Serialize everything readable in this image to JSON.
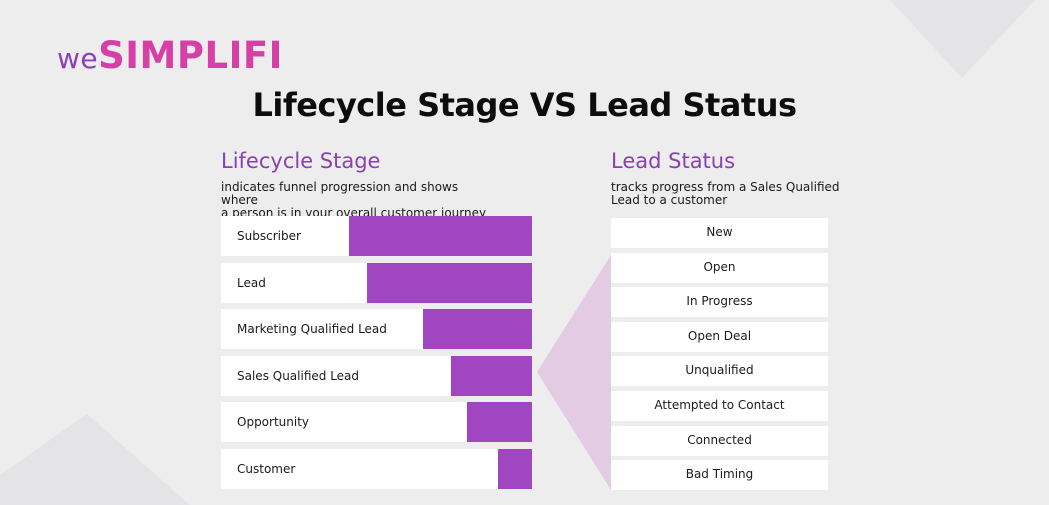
{
  "logo": {
    "prefix": "we",
    "brand": "SIMPLIFI"
  },
  "title": "Lifecycle Stage VS Lead Status",
  "lifecycle": {
    "heading": "Lifecycle Stage",
    "description_line1": "indicates funnel progression and shows where",
    "description_line2": "a person is in your overall customer journey",
    "stages": [
      {
        "label": "Subscriber",
        "level": 0.59
      },
      {
        "label": "Lead",
        "level": 0.53
      },
      {
        "label": "Marketing Qualified Lead",
        "level": 0.35
      },
      {
        "label": "Sales Qualified Lead",
        "level": 0.26
      },
      {
        "label": "Opportunity",
        "level": 0.21
      },
      {
        "label": "Customer",
        "level": 0.11
      }
    ]
  },
  "lead_status": {
    "heading": "Lead Status",
    "description_line1": "tracks progress from a Sales Qualified",
    "description_line2": "Lead to a customer",
    "statuses": [
      "New",
      "Open",
      "In Progress",
      "Open Deal",
      "Unqualified",
      "Attempted to Contact",
      "Connected",
      "Bad Timing"
    ]
  },
  "colors": {
    "background": "#ededee",
    "bar": "#a046c0",
    "heading": "#8b3fb0",
    "connector": "#e3cbe3",
    "logo_prefix": "#8f3fb6",
    "logo_brand": "#d53fa6"
  }
}
